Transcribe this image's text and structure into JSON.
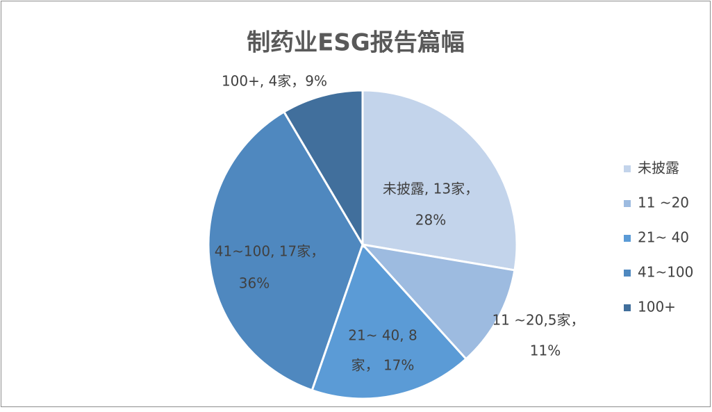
{
  "chart_data": {
    "type": "pie",
    "title": "制药业ESG报告篇幅",
    "categories": [
      "未披露",
      "11 ~20",
      "21~ 40",
      "41~100",
      "100+"
    ],
    "values": [
      13,
      5,
      8,
      17,
      4
    ],
    "value_labels": [
      [
        "未披露, 13家，",
        "28%"
      ],
      [
        "11 ~20,5家，",
        "11%"
      ],
      [
        "21~ 40, 8",
        "家， 17%"
      ],
      [
        "41~100, 17家，",
        "36%"
      ],
      [
        "100+, 4家，9%"
      ]
    ],
    "colors": [
      "#c3d4eb",
      "#9dbbe0",
      "#5b9bd6",
      "#4f88bf",
      "#416f9c"
    ],
    "legend": "right"
  }
}
